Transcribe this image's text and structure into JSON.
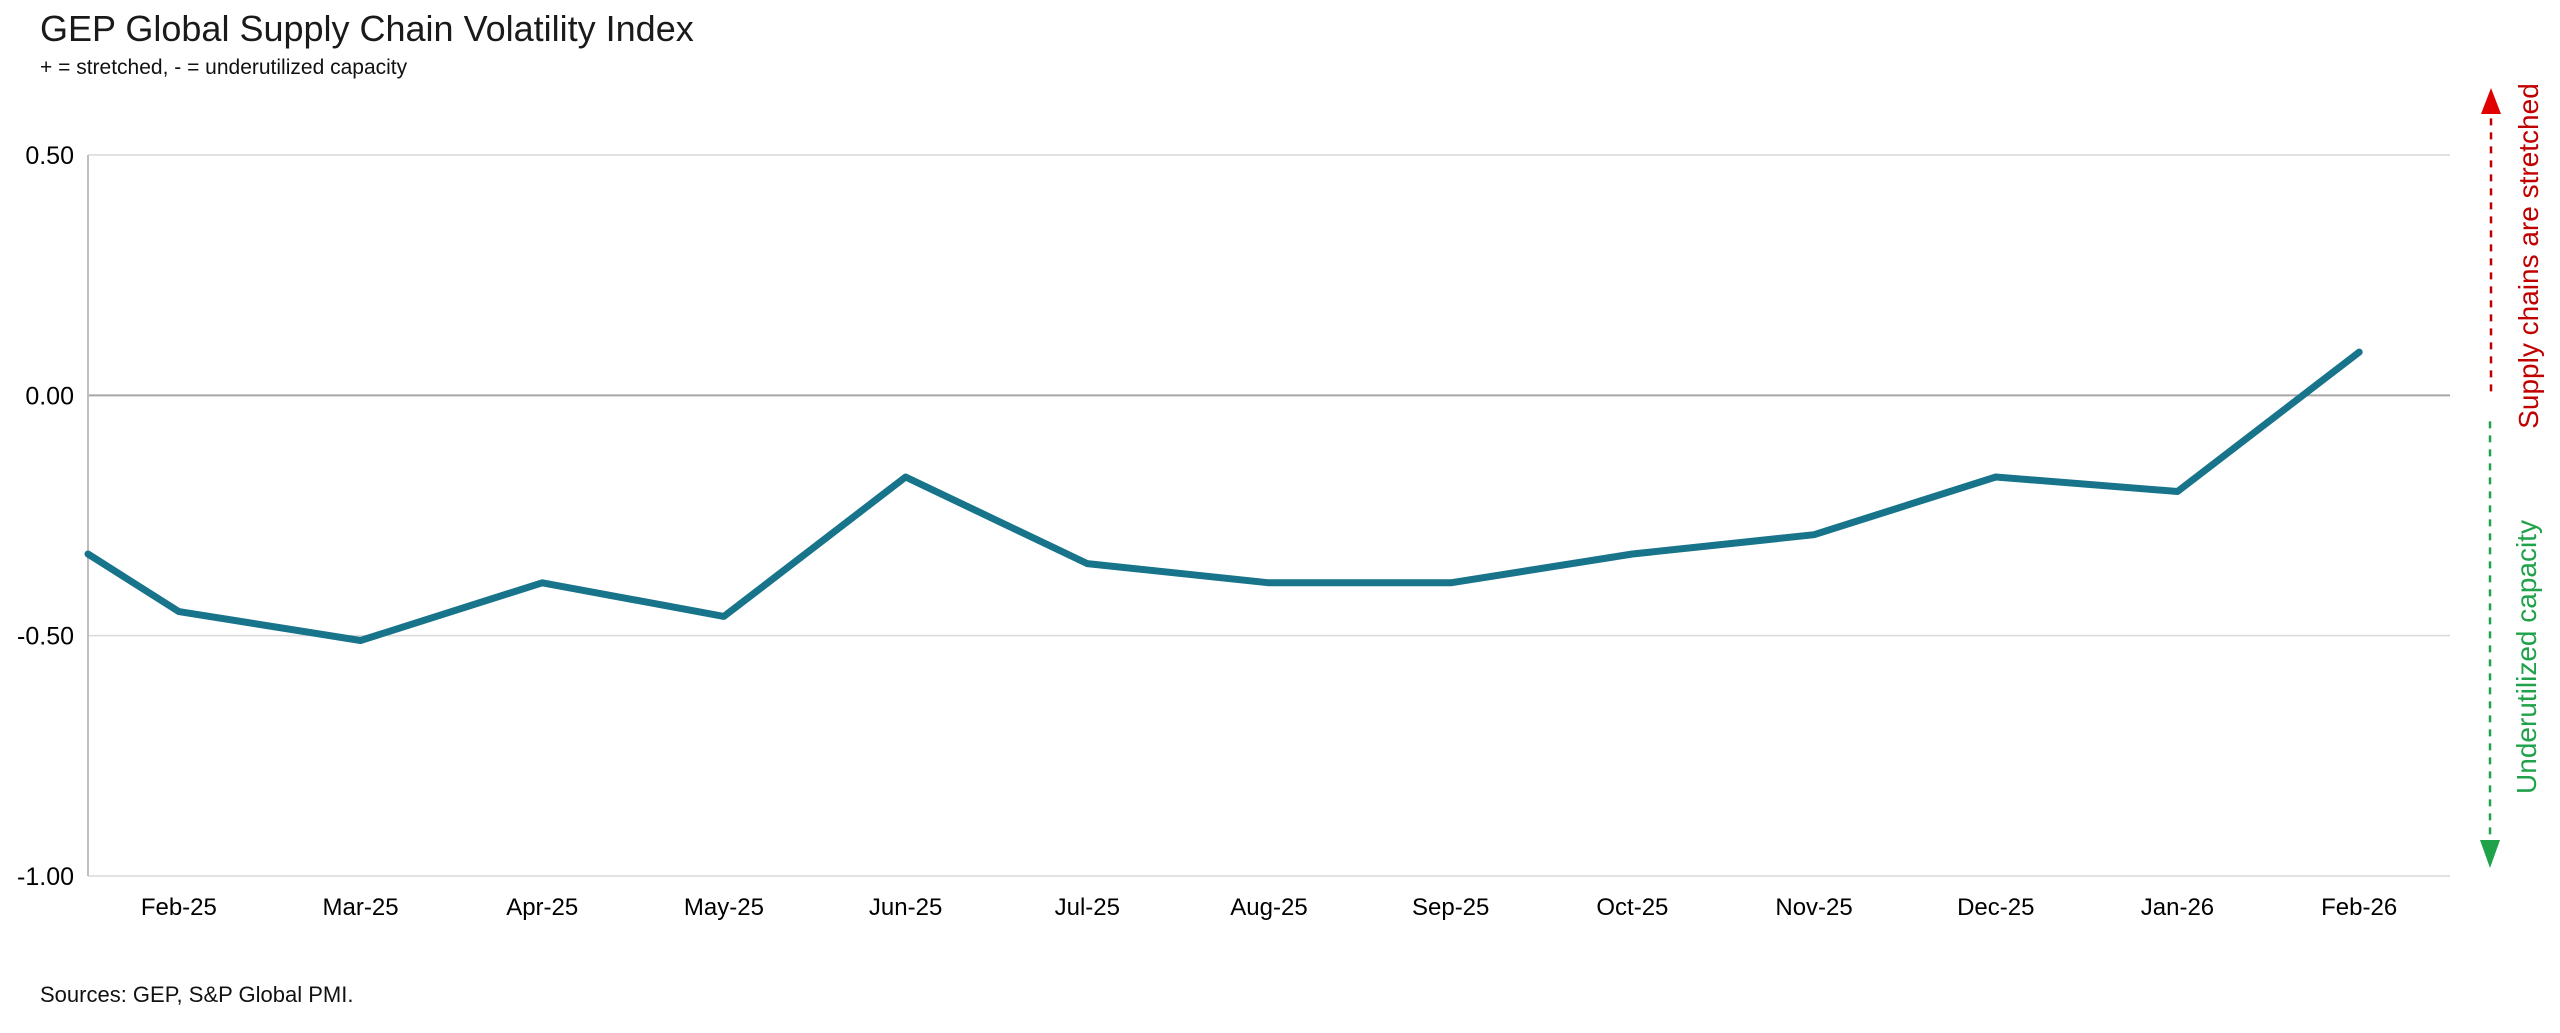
{
  "header": {
    "title": "GEP Global Supply Chain Volatility Index",
    "subtitle": "+ = stretched, - = underutilized capacity"
  },
  "footer": {
    "sources": "Sources: GEP, S&P Global PMI."
  },
  "chart_data": {
    "type": "line",
    "title": "GEP Global Supply Chain Volatility Index",
    "subtitle": "+ = stretched, - = underutilized capacity",
    "categories": [
      "Feb-25",
      "Mar-25",
      "Apr-25",
      "May-25",
      "Jun-25",
      "Jul-25",
      "Aug-25",
      "Sep-25",
      "Oct-25",
      "Nov-25",
      "Dec-25",
      "Jan-26",
      "Feb-26"
    ],
    "series": [
      {
        "name": "GEP Global Supply Chain Volatility Index",
        "color": "#17748A",
        "lead_in_edge_value": -0.33,
        "values": [
          -0.45,
          -0.51,
          -0.39,
          -0.46,
          -0.17,
          -0.35,
          -0.39,
          -0.39,
          -0.33,
          -0.29,
          -0.17,
          -0.2,
          0.09
        ]
      }
    ],
    "ylim": [
      -1.0,
      0.5
    ],
    "y_ticks": [
      {
        "value": 0.5,
        "label": "0.50",
        "emphasis": false
      },
      {
        "value": 0.0,
        "label": "0.00",
        "emphasis": true
      },
      {
        "value": -0.5,
        "label": "-0.50",
        "emphasis": false
      },
      {
        "value": -1.0,
        "label": "-1.00",
        "emphasis": false
      }
    ],
    "grid": true,
    "legend": "none",
    "axis_colors": {
      "gridline": "#D9D9D9",
      "zero_line": "#A6A6A6",
      "y_axis_line": "#BFBFBF"
    },
    "annotations": [
      {
        "id": "stretched",
        "text": "Supply chains are stretched",
        "color": "#C00000",
        "arrow_color": "#E00000",
        "arrow": "up"
      },
      {
        "id": "underutilized",
        "text": "Underutilized capacity",
        "color": "#1FA24A",
        "arrow_color": "#1FA24A",
        "arrow": "down"
      }
    ]
  }
}
